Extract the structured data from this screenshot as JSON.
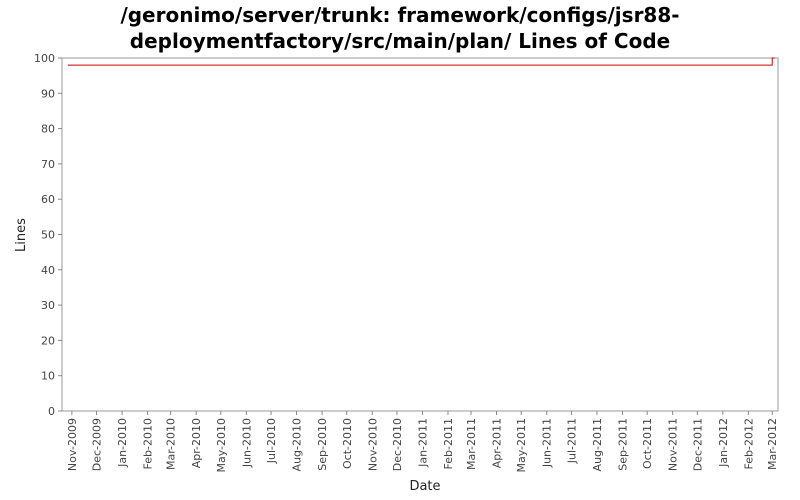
{
  "chart_data": {
    "type": "line",
    "title_line1": "/geronimo/server/trunk: framework/configs/jsr88-",
    "title_line2": "deploymentfactory/src/main/plan/ Lines of Code",
    "xlabel": "Date",
    "ylabel": "Lines",
    "ylim": [
      0,
      100
    ],
    "yticks": [
      0,
      10,
      20,
      30,
      40,
      50,
      60,
      70,
      80,
      90,
      100
    ],
    "xticks": [
      "Nov-2009",
      "Dec-2009",
      "Jan-2010",
      "Feb-2010",
      "Mar-2010",
      "Apr-2010",
      "May-2010",
      "Jun-2010",
      "Jul-2010",
      "Aug-2010",
      "Sep-2010",
      "Oct-2010",
      "Nov-2010",
      "Dec-2010",
      "Jan-2011",
      "Feb-2011",
      "Mar-2011",
      "Apr-2011",
      "May-2011",
      "Jun-2011",
      "Jul-2011",
      "Aug-2011",
      "Sep-2011",
      "Oct-2011",
      "Nov-2011",
      "Dec-2011",
      "Jan-2012",
      "Feb-2012",
      "Mar-2012"
    ],
    "grid": false,
    "line_color": "#cc0000",
    "series": [
      {
        "x": [
          "2009-10-27",
          "2012-03-01",
          "2012-03-01",
          "2012-03-04"
        ],
        "values": [
          98,
          98,
          100,
          100
        ]
      }
    ]
  }
}
